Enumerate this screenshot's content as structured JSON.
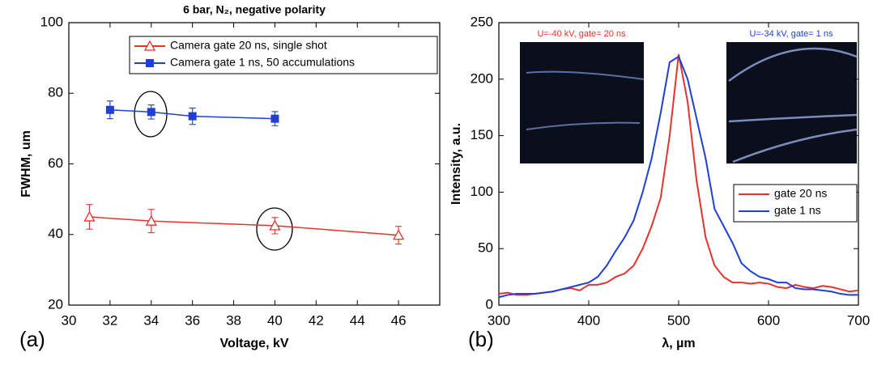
{
  "chart_data": [
    {
      "type": "scatter",
      "title": "6 bar, N₂, negative polarity",
      "panel_label": "(a)",
      "xlabel": "Voltage, kV",
      "ylabel": "FWHM, um",
      "xlim": [
        30,
        48
      ],
      "xticks": [
        30,
        32,
        34,
        36,
        38,
        40,
        42,
        44,
        46
      ],
      "ylim": [
        20,
        100
      ],
      "yticks": [
        20,
        40,
        60,
        80,
        100
      ],
      "legend": "upper right",
      "series": [
        {
          "name": "Camera gate 20 ns, single shot",
          "color": "#e8322d",
          "marker": "triangle-open",
          "x": [
            31,
            34,
            40,
            46
          ],
          "values": [
            45,
            43.8,
            42.5,
            39.8
          ],
          "errors": [
            3.5,
            3.3,
            2.3,
            2.5
          ]
        },
        {
          "name": "Camera gate 1 ns, 50 accumulations",
          "color": "#1f3fd6",
          "marker": "square",
          "x": [
            32,
            34,
            36,
            40
          ],
          "values": [
            75.3,
            74.7,
            73.5,
            72.8
          ],
          "errors": [
            2.5,
            2.0,
            2.3,
            2.0
          ]
        }
      ]
    },
    {
      "type": "line",
      "panel_label": "(b)",
      "xlabel": "λ, µm",
      "ylabel": "Intensity, a.u.",
      "xlim": [
        300,
        700
      ],
      "xticks": [
        300,
        400,
        500,
        600,
        700
      ],
      "ylim": [
        0,
        250
      ],
      "yticks": [
        0,
        50,
        100,
        150,
        200,
        250
      ],
      "legend": "lower right",
      "annotations": [
        {
          "text": "U=-40 kV, gate= 20 ns",
          "color": "#e8322d"
        },
        {
          "text": "U=-34 kV, gate= 1 ns",
          "color": "#1f3fd6"
        }
      ],
      "x": [
        300,
        310,
        320,
        330,
        340,
        350,
        360,
        370,
        380,
        390,
        400,
        410,
        420,
        430,
        440,
        450,
        460,
        470,
        480,
        490,
        500,
        510,
        520,
        530,
        540,
        550,
        560,
        570,
        580,
        590,
        600,
        610,
        620,
        630,
        640,
        650,
        660,
        670,
        680,
        690,
        700
      ],
      "series": [
        {
          "name": "gate 20 ns",
          "color": "#e8322d",
          "values": [
            10,
            11,
            9,
            9,
            10,
            11,
            12,
            14,
            15,
            13,
            18,
            18,
            20,
            25,
            28,
            35,
            50,
            70,
            95,
            150,
            222,
            180,
            110,
            60,
            35,
            25,
            20,
            20,
            19,
            20,
            19,
            16,
            15,
            18,
            16,
            15,
            17,
            16,
            14,
            12,
            13
          ]
        },
        {
          "name": "gate 1 ns",
          "color": "#1f3fd6",
          "values": [
            7,
            9,
            10,
            10,
            10,
            11,
            12,
            14,
            16,
            18,
            20,
            25,
            35,
            48,
            60,
            75,
            100,
            130,
            170,
            215,
            220,
            200,
            165,
            130,
            85,
            70,
            55,
            37,
            30,
            25,
            23,
            20,
            20,
            15,
            14,
            14,
            13,
            12,
            10,
            9,
            9
          ]
        }
      ]
    }
  ]
}
